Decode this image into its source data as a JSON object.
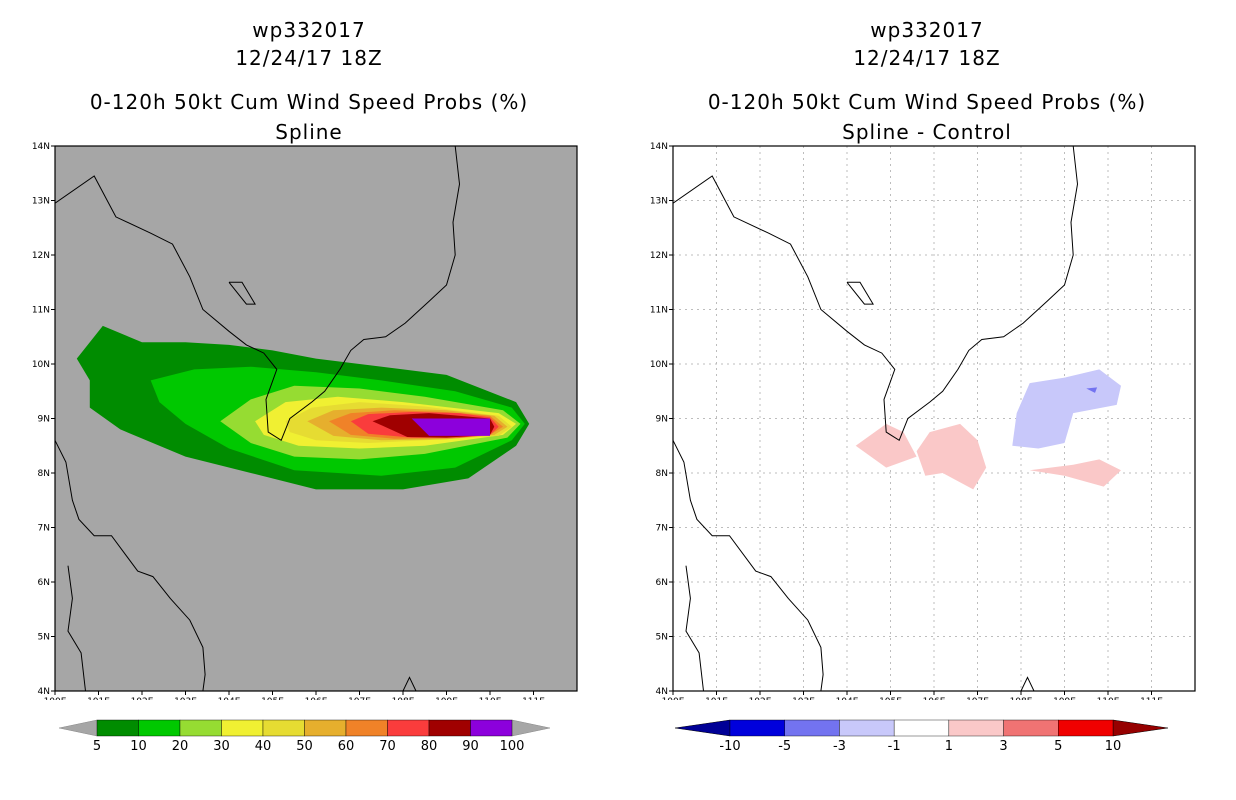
{
  "chart_data": [
    {
      "type": "heatmap",
      "title_line1": "wp332017",
      "title_line2": "12/24/17 18Z",
      "title_line3": "0-120h 50kt Cum Wind Speed Probs (%)",
      "title_line4": "Spline",
      "x_ticks": [
        "100E",
        "101E",
        "102E",
        "103E",
        "104E",
        "105E",
        "106E",
        "107E",
        "108E",
        "109E",
        "110E",
        "111E"
      ],
      "y_ticks": [
        "4N",
        "5N",
        "6N",
        "7N",
        "8N",
        "9N",
        "10N",
        "11N",
        "12N",
        "13N",
        "14N"
      ],
      "xlim": [
        100,
        112
      ],
      "ylim": [
        4,
        14
      ],
      "grid": false,
      "background_color": "#a6a6a6",
      "legend": {
        "placement": "bottom",
        "labels": [
          "5",
          "10",
          "20",
          "30",
          "40",
          "50",
          "60",
          "70",
          "80",
          "90",
          "100"
        ],
        "colors": [
          "#008c00",
          "#00c800",
          "#96dc32",
          "#f0f032",
          "#e6dc32",
          "#e6af2d",
          "#f08228",
          "#fa3c3c",
          "#a00000",
          "#8c00dc"
        ],
        "end_colors": [
          "#a6a6a6",
          "#a6a6a6"
        ]
      },
      "contours": [
        {
          "level": 5,
          "color": "#008c00",
          "points": [
            [
              101.1,
              10.7
            ],
            [
              102,
              10.4
            ],
            [
              103,
              10.4
            ],
            [
              104,
              10.35
            ],
            [
              105,
              10.25
            ],
            [
              106,
              10.1
            ],
            [
              107,
              10
            ],
            [
              108,
              9.9
            ],
            [
              109,
              9.8
            ],
            [
              110.6,
              9.3
            ],
            [
              110.9,
              8.9
            ],
            [
              110.6,
              8.5
            ],
            [
              109.5,
              7.9
            ],
            [
              108,
              7.7
            ],
            [
              106,
              7.7
            ],
            [
              104.5,
              8
            ],
            [
              103,
              8.3
            ],
            [
              101.5,
              8.8
            ],
            [
              100.8,
              9.2
            ],
            [
              100.8,
              9.7
            ],
            [
              100.5,
              10.1
            ]
          ]
        },
        {
          "level": 10,
          "color": "#00c800",
          "points": [
            [
              102.2,
              9.7
            ],
            [
              103.2,
              9.9
            ],
            [
              104.5,
              9.95
            ],
            [
              106,
              9.85
            ],
            [
              107.5,
              9.7
            ],
            [
              109.2,
              9.5
            ],
            [
              110.5,
              9.2
            ],
            [
              110.8,
              8.9
            ],
            [
              110.5,
              8.6
            ],
            [
              109.2,
              8.1
            ],
            [
              107.5,
              7.95
            ],
            [
              105.5,
              8.05
            ],
            [
              104,
              8.45
            ],
            [
              103,
              8.9
            ],
            [
              102.4,
              9.3
            ]
          ]
        },
        {
          "level": 20,
          "color": "#96dc32",
          "points": [
            [
              103.8,
              8.95
            ],
            [
              104.5,
              9.35
            ],
            [
              105.5,
              9.6
            ],
            [
              107,
              9.55
            ],
            [
              108.5,
              9.4
            ],
            [
              110.3,
              9.15
            ],
            [
              110.7,
              8.9
            ],
            [
              110.4,
              8.65
            ],
            [
              108.5,
              8.35
            ],
            [
              107,
              8.25
            ],
            [
              105.5,
              8.3
            ],
            [
              104.5,
              8.55
            ]
          ]
        },
        {
          "level": 30,
          "color": "#f0f032",
          "points": [
            [
              104.6,
              8.95
            ],
            [
              105.3,
              9.3
            ],
            [
              106.5,
              9.4
            ],
            [
              108,
              9.3
            ],
            [
              110.2,
              9.1
            ],
            [
              110.6,
              8.9
            ],
            [
              110.3,
              8.7
            ],
            [
              108.5,
              8.5
            ],
            [
              107,
              8.45
            ],
            [
              105.6,
              8.5
            ],
            [
              104.8,
              8.7
            ]
          ]
        },
        {
          "level": 40,
          "color": "#e6dc32",
          "points": [
            [
              105.3,
              8.95
            ],
            [
              105.9,
              9.2
            ],
            [
              107,
              9.3
            ],
            [
              108.5,
              9.22
            ],
            [
              110.2,
              9.05
            ],
            [
              110.5,
              8.85
            ],
            [
              110.2,
              8.68
            ],
            [
              108.5,
              8.6
            ],
            [
              107.2,
              8.55
            ],
            [
              106,
              8.6
            ],
            [
              105.4,
              8.75
            ]
          ]
        },
        {
          "level": 50,
          "color": "#e6af2d",
          "points": [
            [
              105.8,
              8.95
            ],
            [
              106.4,
              9.15
            ],
            [
              107.5,
              9.2
            ],
            [
              109,
              9.15
            ],
            [
              110.1,
              9.05
            ],
            [
              110.4,
              8.85
            ],
            [
              110.1,
              8.7
            ],
            [
              109,
              8.62
            ],
            [
              107.5,
              8.6
            ],
            [
              106.4,
              8.68
            ]
          ]
        },
        {
          "level": 60,
          "color": "#f08228",
          "points": [
            [
              106.3,
              8.95
            ],
            [
              106.8,
              9.1
            ],
            [
              107.8,
              9.15
            ],
            [
              109,
              9.12
            ],
            [
              110,
              9.05
            ],
            [
              110.3,
              8.85
            ],
            [
              110,
              8.7
            ],
            [
              109,
              8.64
            ],
            [
              107.8,
              8.63
            ],
            [
              106.8,
              8.7
            ]
          ]
        },
        {
          "level": 70,
          "color": "#fa3c3c",
          "points": [
            [
              106.8,
              8.95
            ],
            [
              107.2,
              9.08
            ],
            [
              108.2,
              9.12
            ],
            [
              109.3,
              9.1
            ],
            [
              110,
              9.02
            ],
            [
              110.2,
              8.85
            ],
            [
              110,
              8.7
            ],
            [
              109.3,
              8.65
            ],
            [
              108.2,
              8.65
            ],
            [
              107.2,
              8.72
            ]
          ]
        },
        {
          "level": 80,
          "color": "#a00000",
          "points": [
            [
              107.3,
              8.95
            ],
            [
              107.7,
              9.06
            ],
            [
              108.6,
              9.1
            ],
            [
              110,
              9.0
            ],
            [
              110.1,
              8.85
            ],
            [
              110,
              8.7
            ],
            [
              109,
              8.65
            ],
            [
              108.1,
              8.66
            ]
          ]
        },
        {
          "level": 90,
          "color": "#8c00dc",
          "points": [
            [
              108.2,
              9.0
            ],
            [
              110,
              9.0
            ],
            [
              110,
              8.68
            ],
            [
              108.6,
              8.68
            ]
          ]
        }
      ]
    },
    {
      "type": "heatmap",
      "title_line1": "wp332017",
      "title_line2": "12/24/17 18Z",
      "title_line3": "0-120h 50kt Cum Wind Speed Probs (%)",
      "title_line4": "Spline - Control",
      "x_ticks": [
        "100E",
        "101E",
        "102E",
        "103E",
        "104E",
        "105E",
        "106E",
        "107E",
        "108E",
        "109E",
        "110E",
        "111E"
      ],
      "y_ticks": [
        "4N",
        "5N",
        "6N",
        "7N",
        "8N",
        "9N",
        "10N",
        "11N",
        "12N",
        "13N",
        "14N"
      ],
      "xlim": [
        100,
        112
      ],
      "ylim": [
        4,
        14
      ],
      "grid": true,
      "background_color": "#ffffff",
      "legend": {
        "placement": "bottom",
        "labels": [
          "-10",
          "-5",
          "-3",
          "-1",
          "1",
          "3",
          "5",
          "10"
        ],
        "colors": [
          "#0000dc",
          "#7373f0",
          "#c8c8fa",
          "#ffffff",
          "#fac8c8",
          "#f07373",
          "#f00000"
        ],
        "end_colors": [
          "#000096",
          "#960000"
        ]
      },
      "contours": [
        {
          "level": 1,
          "color": "#fac8c8",
          "points": [
            [
              104.2,
              8.5
            ],
            [
              104.9,
              8.9
            ],
            [
              105.3,
              8.75
            ],
            [
              105.6,
              8.3
            ],
            [
              104.9,
              8.1
            ]
          ]
        },
        {
          "level": 1,
          "color": "#fac8c8",
          "points": [
            [
              105.6,
              8.4
            ],
            [
              105.9,
              8.75
            ],
            [
              106.6,
              8.9
            ],
            [
              107,
              8.6
            ],
            [
              107.2,
              8.1
            ],
            [
              106.9,
              7.7
            ],
            [
              106.2,
              8.0
            ],
            [
              105.8,
              7.95
            ]
          ]
        },
        {
          "level": 1,
          "color": "#fac8c8",
          "points": [
            [
              108.2,
              8.05
            ],
            [
              109.2,
              8.15
            ],
            [
              109.8,
              8.25
            ],
            [
              110.3,
              8.05
            ],
            [
              109.9,
              7.75
            ],
            [
              109,
              7.95
            ]
          ]
        },
        {
          "level": -1,
          "color": "#c8c8fa",
          "points": [
            [
              107.8,
              8.5
            ],
            [
              108.4,
              8.45
            ],
            [
              109.0,
              8.55
            ],
            [
              109.2,
              9.1
            ],
            [
              110.2,
              9.25
            ],
            [
              110.3,
              9.6
            ],
            [
              109.8,
              9.9
            ],
            [
              109.0,
              9.75
            ],
            [
              108.2,
              9.65
            ],
            [
              107.9,
              9.1
            ]
          ]
        },
        {
          "level": -3,
          "color": "#7373f0",
          "points": [
            [
              109.5,
              9.55
            ],
            [
              109.75,
              9.57
            ],
            [
              109.7,
              9.47
            ]
          ]
        }
      ]
    }
  ],
  "coastline_color": "#000000"
}
